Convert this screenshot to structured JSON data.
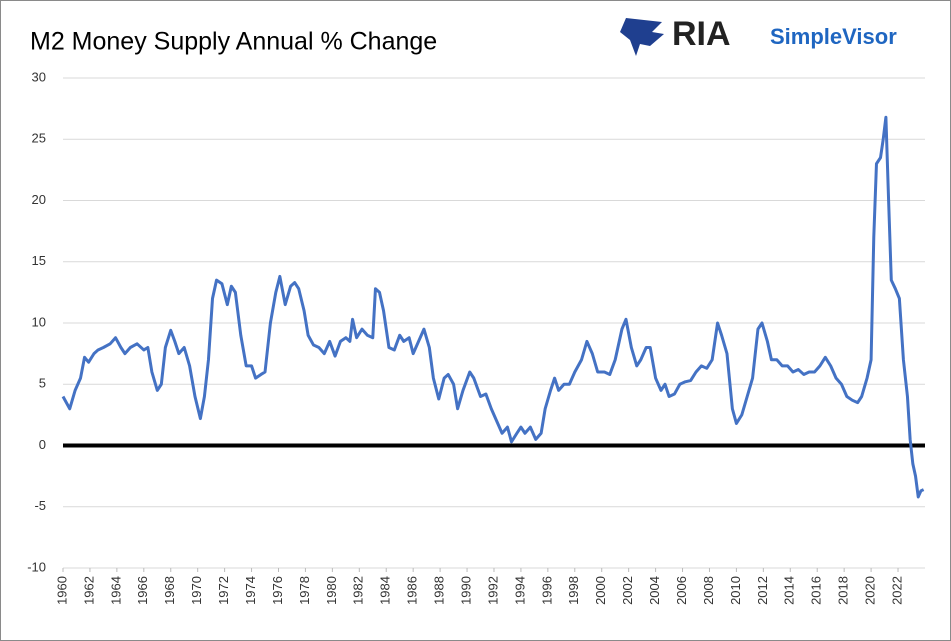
{
  "chart_data": {
    "type": "line",
    "title": "M2 Money Supply Annual % Change",
    "logo": {
      "brand": "RIA",
      "product": "SimpleVisor"
    },
    "xlim": [
      1960,
      2024.3
    ],
    "ylim": [
      -10,
      30
    ],
    "xticks": [
      1960,
      1962,
      1964,
      1966,
      1968,
      1970,
      1972,
      1974,
      1976,
      1978,
      1980,
      1982,
      1984,
      1986,
      1988,
      1990,
      1992,
      1994,
      1996,
      1998,
      2000,
      2002,
      2004,
      2006,
      2008,
      2010,
      2012,
      2014,
      2016,
      2018,
      2020,
      2022
    ],
    "yticks": [
      -10,
      -5,
      0,
      5,
      10,
      15,
      20,
      25,
      30
    ],
    "grid": true,
    "zero_line": true,
    "x": [
      1960,
      1960.5,
      1960.9,
      1961.3,
      1961.6,
      1961.9,
      1962.3,
      1962.6,
      1963,
      1963.5,
      1963.9,
      1964.3,
      1964.6,
      1965,
      1965.5,
      1966,
      1966.3,
      1966.6,
      1967,
      1967.3,
      1967.6,
      1968,
      1968.3,
      1968.6,
      1969,
      1969.4,
      1969.8,
      1970.2,
      1970.5,
      1970.8,
      1971.1,
      1971.4,
      1971.8,
      1972.2,
      1972.5,
      1972.8,
      1973.2,
      1973.6,
      1974,
      1974.3,
      1974.7,
      1975,
      1975.4,
      1975.8,
      1976.1,
      1976.5,
      1976.9,
      1977.2,
      1977.5,
      1977.9,
      1978.2,
      1978.6,
      1979,
      1979.4,
      1979.8,
      1980.2,
      1980.6,
      1981,
      1981.3,
      1981.5,
      1981.8,
      1982.2,
      1982.6,
      1983,
      1983.2,
      1983.5,
      1983.8,
      1984.2,
      1984.6,
      1985,
      1985.3,
      1985.7,
      1986,
      1986.4,
      1986.8,
      1987.2,
      1987.5,
      1987.9,
      1988.3,
      1988.6,
      1989,
      1989.3,
      1989.7,
      1990.2,
      1990.5,
      1991,
      1991.4,
      1991.8,
      1992.2,
      1992.6,
      1993,
      1993.3,
      1993.7,
      1994,
      1994.3,
      1994.7,
      1995.1,
      1995.5,
      1995.8,
      1996.2,
      1996.5,
      1996.8,
      1997.2,
      1997.6,
      1998,
      1998.5,
      1998.9,
      1999.3,
      1999.7,
      2000.2,
      2000.6,
      2001,
      2001.5,
      2001.8,
      2002.2,
      2002.6,
      2002.9,
      2003.3,
      2003.6,
      2004,
      2004.4,
      2004.7,
      2005,
      2005.4,
      2005.8,
      2006.2,
      2006.6,
      2007,
      2007.4,
      2007.8,
      2008.2,
      2008.6,
      2008.9,
      2009.3,
      2009.7,
      2010,
      2010.4,
      2010.8,
      2011.2,
      2011.6,
      2011.9,
      2012.3,
      2012.6,
      2013,
      2013.4,
      2013.8,
      2014.2,
      2014.6,
      2015,
      2015.4,
      2015.8,
      2016.2,
      2016.6,
      2017,
      2017.4,
      2017.8,
      2018.2,
      2018.6,
      2019,
      2019.3,
      2019.7,
      2020,
      2020.2,
      2020.4,
      2020.7,
      2020.9,
      2021.1,
      2021.3,
      2021.5,
      2021.8,
      2022.1,
      2022.4,
      2022.7,
      2022.9,
      2023.1,
      2023.3,
      2023.5,
      2023.7,
      2023.9
    ],
    "series": [
      {
        "color": "#4472c4",
        "values": [
          4.0,
          3.0,
          4.5,
          5.5,
          7.2,
          6.8,
          7.5,
          7.8,
          8.0,
          8.3,
          8.8,
          8.0,
          7.5,
          8.0,
          8.3,
          7.8,
          8.0,
          6.0,
          4.5,
          5.0,
          8.0,
          9.4,
          8.5,
          7.5,
          8.0,
          6.5,
          4.0,
          2.2,
          4.0,
          7.0,
          12.0,
          13.5,
          13.2,
          11.5,
          13.0,
          12.5,
          9.0,
          6.5,
          6.5,
          5.5,
          5.8,
          6.0,
          10.0,
          12.5,
          13.8,
          11.5,
          13.0,
          13.3,
          12.8,
          11.0,
          9.0,
          8.2,
          8.0,
          7.5,
          8.5,
          7.3,
          8.5,
          8.8,
          8.5,
          10.3,
          8.8,
          9.5,
          9.0,
          8.8,
          12.8,
          12.5,
          11.0,
          8.0,
          7.8,
          9.0,
          8.5,
          8.8,
          7.5,
          8.5,
          9.5,
          8.0,
          5.5,
          3.8,
          5.5,
          5.8,
          5.0,
          3.0,
          4.5,
          6.0,
          5.5,
          4.0,
          4.2,
          3.0,
          2.0,
          1.0,
          1.5,
          0.3,
          1.0,
          1.5,
          1.0,
          1.5,
          0.5,
          1.0,
          3.0,
          4.5,
          5.5,
          4.5,
          5.0,
          5.0,
          6.0,
          7.0,
          8.5,
          7.5,
          6.0,
          6.0,
          5.8,
          7.0,
          9.5,
          10.3,
          8.0,
          6.5,
          7.0,
          8.0,
          8.0,
          5.5,
          4.5,
          5.0,
          4.0,
          4.2,
          5.0,
          5.2,
          5.3,
          6.0,
          6.5,
          6.3,
          7.0,
          10.0,
          9.0,
          7.5,
          3.0,
          1.8,
          2.5,
          4.0,
          5.5,
          9.5,
          10.0,
          8.5,
          7.0,
          7.0,
          6.5,
          6.5,
          6.0,
          6.2,
          5.8,
          6.0,
          6.0,
          6.5,
          7.2,
          6.5,
          5.5,
          5.0,
          4.0,
          3.7,
          3.5,
          4.0,
          5.5,
          7.0,
          17.0,
          23.0,
          23.5,
          25.0,
          26.8,
          20.0,
          13.5,
          12.8,
          12.0,
          7.0,
          4.0,
          0.5,
          -1.5,
          -2.5,
          -4.2,
          -3.7,
          -3.6
        ]
      }
    ]
  }
}
